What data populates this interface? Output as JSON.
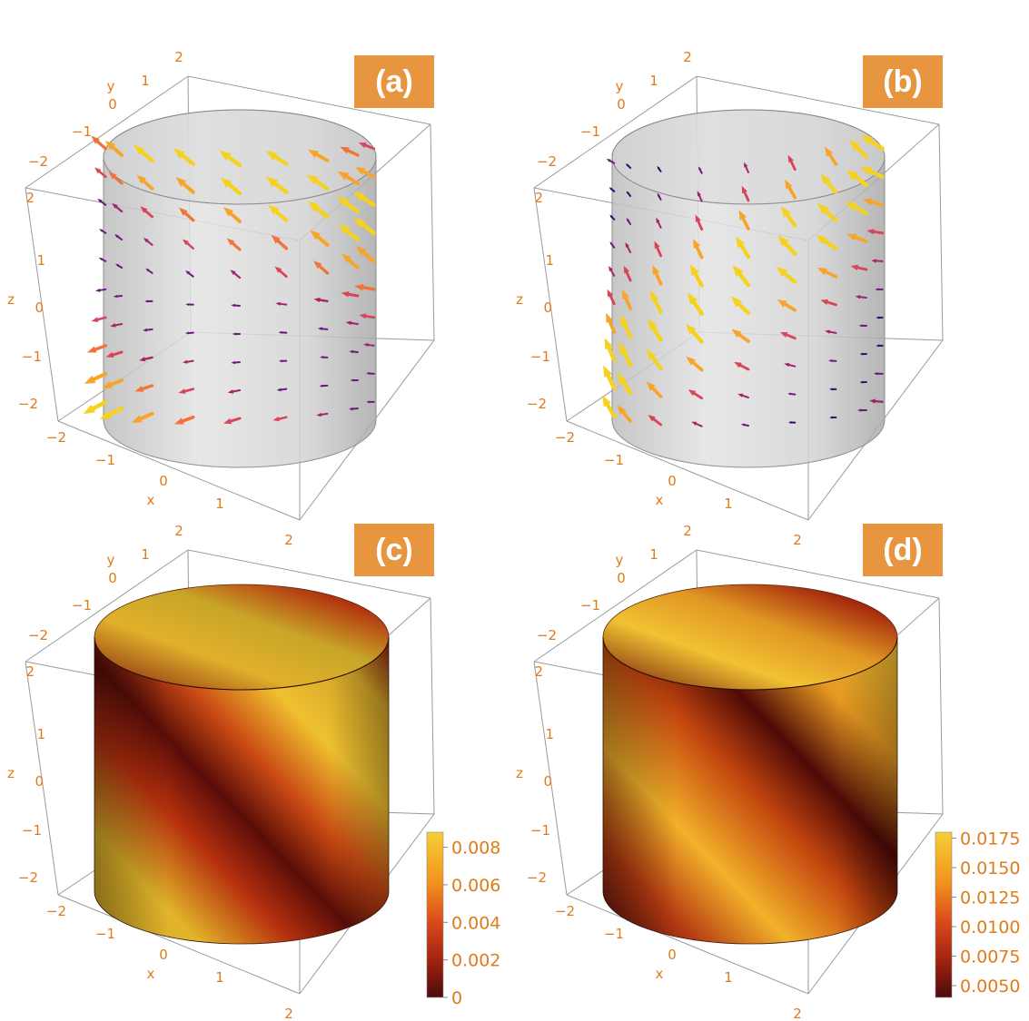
{
  "panels": [
    {
      "label": "(a)",
      "kind": "vector",
      "axes": {
        "x": {
          "label": "x",
          "ticks": [
            "−2",
            "−1",
            "0",
            "1",
            "2"
          ]
        },
        "y": {
          "label": "y",
          "ticks": [
            "−2",
            "−1",
            "0",
            "1",
            "2"
          ]
        },
        "z": {
          "label": "z",
          "ticks": [
            "−2",
            "−1",
            "0",
            "1",
            "2"
          ]
        }
      }
    },
    {
      "label": "(b)",
      "kind": "vector",
      "axes": {
        "x": {
          "label": "x",
          "ticks": [
            "−2",
            "−1",
            "0",
            "1",
            "2"
          ]
        },
        "y": {
          "label": "y",
          "ticks": [
            "−2",
            "−1",
            "0",
            "1",
            "2"
          ]
        },
        "z": {
          "label": "z",
          "ticks": [
            "−2",
            "−1",
            "0",
            "1",
            "2"
          ]
        }
      }
    },
    {
      "label": "(c)",
      "kind": "density",
      "axes": {
        "x": {
          "label": "x",
          "ticks": [
            "−2",
            "−1",
            "0",
            "1",
            "2"
          ]
        },
        "y": {
          "label": "y",
          "ticks": [
            "−2",
            "−1",
            "0",
            "1",
            "2"
          ]
        },
        "z": {
          "label": "z",
          "ticks": [
            "−2",
            "−1",
            "0",
            "1",
            "2"
          ]
        }
      },
      "colorbar": {
        "ticks": [
          "0.008",
          "0.006",
          "0.004",
          "0.002",
          "0"
        ],
        "range": [
          0,
          0.0088
        ]
      }
    },
    {
      "label": "(d)",
      "kind": "density",
      "axes": {
        "x": {
          "label": "x",
          "ticks": [
            "−2",
            "−1",
            "0",
            "1",
            "2"
          ]
        },
        "y": {
          "label": "y",
          "ticks": [
            "−2",
            "−1",
            "0",
            "1",
            "2"
          ]
        },
        "z": {
          "label": "z",
          "ticks": [
            "−2",
            "−1",
            "0",
            "1",
            "2"
          ]
        }
      },
      "colorbar": {
        "ticks": [
          "0.0175",
          "0.0150",
          "0.0125",
          "0.0100",
          "0.0075",
          "0.0050"
        ],
        "range": [
          0.004,
          0.018
        ]
      }
    }
  ],
  "colors": {
    "accent": "#E8953F",
    "tick_text": "#E07B1A",
    "colormap": [
      "#4B0B0B",
      "#8E1A0E",
      "#C63A12",
      "#EB6F17",
      "#F5A623",
      "#F7C932",
      "#E6D233"
    ]
  }
}
